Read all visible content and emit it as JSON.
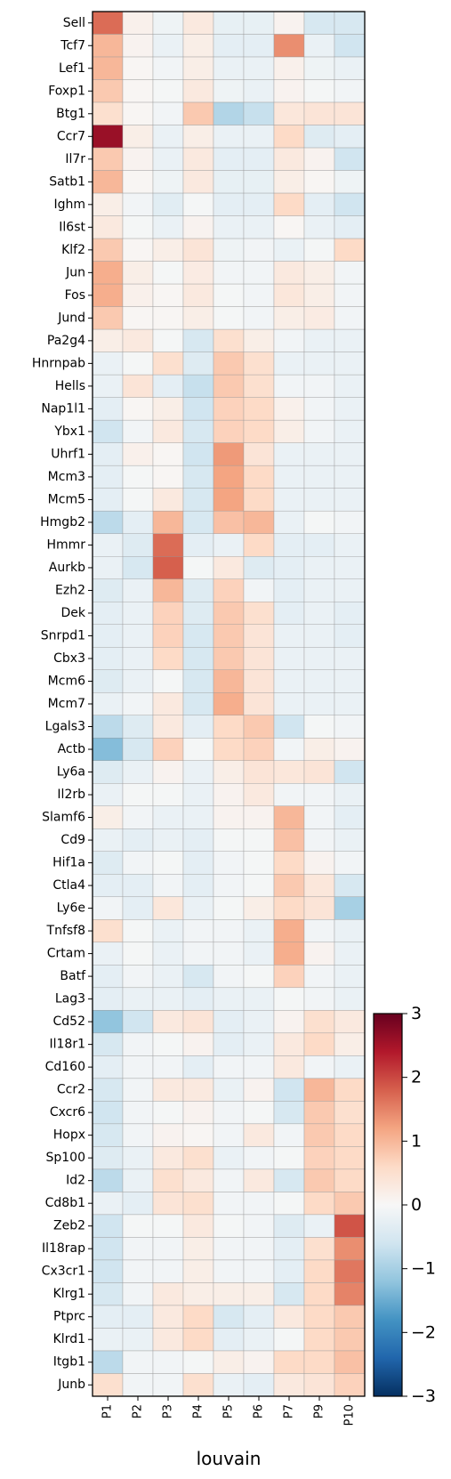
{
  "chart_data": {
    "type": "heatmap",
    "xlabel": "louvain",
    "ylabel": "",
    "title": "",
    "columns": [
      "P1",
      "P2",
      "P3",
      "P4",
      "P5",
      "P6",
      "P7",
      "P9",
      "P10"
    ],
    "rows": [
      "Sell",
      "Tcf7",
      "Lef1",
      "Foxp1",
      "Btg1",
      "Ccr7",
      "Il7r",
      "Satb1",
      "Ighm",
      "Il6st",
      "Klf2",
      "Jun",
      "Fos",
      "Jund",
      "Pa2g4",
      "Hnrnpab",
      "Hells",
      "Nap1l1",
      "Ybx1",
      "Uhrf1",
      "Mcm3",
      "Mcm5",
      "Hmgb2",
      "Hmmr",
      "Aurkb",
      "Ezh2",
      "Dek",
      "Snrpd1",
      "Cbx3",
      "Mcm6",
      "Mcm7",
      "Lgals3",
      "Actb",
      "Ly6a",
      "Il2rb",
      "Slamf6",
      "Cd9",
      "Hif1a",
      "Ctla4",
      "Ly6e",
      "Tnfsf8",
      "Crtam",
      "Batf",
      "Lag3",
      "Cd52",
      "Il18r1",
      "Cd160",
      "Ccr2",
      "Cxcr6",
      "Hopx",
      "Sp100",
      "Id2",
      "Cd8b1",
      "Zeb2",
      "Il18rap",
      "Cx3cr1",
      "Klrg1",
      "Ptprc",
      "Klrd1",
      "Itgb1",
      "Junb"
    ],
    "values": [
      [
        1.7,
        0.15,
        -0.15,
        0.3,
        -0.25,
        -0.25,
        0.1,
        -0.5,
        -0.5
      ],
      [
        1.0,
        0.1,
        -0.2,
        0.2,
        -0.3,
        -0.3,
        1.4,
        -0.2,
        -0.6
      ],
      [
        1.0,
        0.05,
        -0.1,
        0.2,
        -0.2,
        -0.2,
        0.15,
        -0.15,
        -0.2
      ],
      [
        0.8,
        0.05,
        -0.05,
        0.3,
        -0.15,
        -0.2,
        0.1,
        -0.05,
        -0.1
      ],
      [
        0.5,
        0.05,
        -0.1,
        0.8,
        -0.9,
        -0.7,
        0.35,
        0.4,
        0.4
      ],
      [
        2.6,
        0.2,
        -0.2,
        0.2,
        -0.2,
        -0.2,
        0.6,
        -0.4,
        -0.3
      ],
      [
        0.8,
        0.1,
        -0.2,
        0.3,
        -0.3,
        -0.3,
        0.3,
        0.1,
        -0.6
      ],
      [
        1.0,
        0.05,
        -0.15,
        0.3,
        -0.25,
        -0.25,
        0.2,
        0.05,
        -0.15
      ],
      [
        0.2,
        -0.1,
        -0.35,
        -0.05,
        -0.3,
        -0.3,
        0.6,
        -0.3,
        -0.6
      ],
      [
        0.3,
        -0.05,
        -0.2,
        0.1,
        -0.2,
        -0.2,
        0.05,
        -0.2,
        -0.3
      ],
      [
        0.8,
        0.05,
        0.2,
        0.4,
        -0.15,
        -0.1,
        -0.2,
        -0.05,
        0.6
      ],
      [
        1.1,
        0.2,
        -0.05,
        0.25,
        -0.1,
        -0.1,
        0.3,
        0.2,
        -0.1
      ],
      [
        1.1,
        0.15,
        0.05,
        0.3,
        -0.05,
        -0.1,
        0.35,
        0.2,
        -0.1
      ],
      [
        0.8,
        0.05,
        0.05,
        0.2,
        -0.05,
        -0.1,
        0.2,
        0.25,
        -0.1
      ],
      [
        0.2,
        0.3,
        -0.05,
        -0.5,
        0.5,
        0.2,
        -0.1,
        -0.2,
        -0.2
      ],
      [
        -0.2,
        -0.05,
        0.5,
        -0.4,
        0.8,
        0.5,
        -0.2,
        -0.2,
        -0.2
      ],
      [
        -0.2,
        0.4,
        -0.3,
        -0.7,
        0.8,
        0.5,
        -0.1,
        -0.1,
        -0.2
      ],
      [
        -0.3,
        0.05,
        0.2,
        -0.6,
        0.7,
        0.6,
        0.15,
        -0.1,
        -0.2
      ],
      [
        -0.6,
        -0.1,
        0.3,
        -0.5,
        0.7,
        0.6,
        0.2,
        -0.1,
        -0.2
      ],
      [
        -0.3,
        0.15,
        0.05,
        -0.6,
        1.3,
        0.4,
        -0.2,
        -0.2,
        -0.2
      ],
      [
        -0.3,
        -0.05,
        0.05,
        -0.5,
        1.2,
        0.6,
        -0.2,
        -0.2,
        -0.2
      ],
      [
        -0.3,
        -0.05,
        0.3,
        -0.5,
        1.2,
        0.6,
        -0.2,
        -0.2,
        -0.2
      ],
      [
        -0.8,
        -0.3,
        1.0,
        -0.5,
        0.9,
        1.0,
        -0.2,
        -0.05,
        -0.1
      ],
      [
        -0.2,
        -0.4,
        1.7,
        -0.3,
        -0.2,
        0.6,
        -0.3,
        -0.3,
        -0.2
      ],
      [
        -0.2,
        -0.5,
        1.8,
        -0.05,
        0.3,
        -0.4,
        -0.3,
        -0.2,
        -0.2
      ],
      [
        -0.4,
        -0.2,
        1.0,
        -0.4,
        0.7,
        -0.1,
        -0.3,
        -0.2,
        -0.2
      ],
      [
        -0.3,
        -0.2,
        0.7,
        -0.4,
        0.8,
        0.5,
        -0.3,
        -0.2,
        -0.3
      ],
      [
        -0.3,
        -0.2,
        0.7,
        -0.5,
        0.8,
        0.4,
        -0.2,
        -0.2,
        -0.3
      ],
      [
        -0.3,
        -0.2,
        0.6,
        -0.5,
        0.8,
        0.4,
        -0.2,
        -0.2,
        -0.2
      ],
      [
        -0.4,
        -0.2,
        -0.05,
        -0.5,
        1.0,
        0.4,
        -0.2,
        -0.2,
        -0.2
      ],
      [
        -0.2,
        -0.1,
        0.3,
        -0.5,
        1.1,
        0.4,
        -0.2,
        -0.2,
        -0.2
      ],
      [
        -0.8,
        -0.4,
        0.3,
        -0.3,
        0.6,
        0.8,
        -0.6,
        -0.05,
        -0.1
      ],
      [
        -1.3,
        -0.5,
        0.7,
        -0.05,
        0.6,
        0.7,
        -0.1,
        0.2,
        0.1
      ],
      [
        -0.4,
        -0.2,
        0.1,
        -0.2,
        0.2,
        0.4,
        0.35,
        0.4,
        -0.6
      ],
      [
        -0.2,
        -0.05,
        -0.05,
        -0.2,
        0.1,
        0.3,
        -0.1,
        -0.1,
        -0.2
      ],
      [
        0.2,
        -0.1,
        -0.2,
        -0.2,
        0.1,
        0.1,
        1.0,
        -0.1,
        -0.3
      ],
      [
        -0.2,
        -0.3,
        -0.2,
        -0.3,
        -0.05,
        -0.05,
        0.9,
        -0.1,
        -0.2
      ],
      [
        -0.4,
        -0.1,
        -0.05,
        -0.3,
        -0.1,
        -0.05,
        0.6,
        0.1,
        -0.1
      ],
      [
        -0.3,
        -0.3,
        -0.1,
        -0.3,
        -0.1,
        -0.05,
        0.8,
        0.35,
        -0.5
      ],
      [
        -0.1,
        -0.3,
        0.35,
        -0.2,
        -0.05,
        0.2,
        0.6,
        0.4,
        -1.0
      ],
      [
        0.5,
        -0.05,
        -0.2,
        -0.1,
        -0.1,
        -0.2,
        1.1,
        -0.1,
        -0.2
      ],
      [
        -0.2,
        -0.05,
        -0.2,
        -0.1,
        -0.1,
        -0.2,
        1.1,
        0.1,
        -0.2
      ],
      [
        -0.3,
        -0.1,
        -0.2,
        -0.5,
        -0.1,
        -0.05,
        0.7,
        -0.1,
        -0.2
      ],
      [
        -0.3,
        -0.2,
        -0.2,
        -0.3,
        -0.2,
        -0.2,
        -0.05,
        -0.1,
        -0.2
      ],
      [
        -1.2,
        -0.6,
        0.3,
        0.4,
        -0.3,
        -0.2,
        0.1,
        0.5,
        0.3
      ],
      [
        -0.5,
        -0.1,
        -0.05,
        0.1,
        -0.3,
        -0.2,
        0.3,
        0.6,
        0.2
      ],
      [
        -0.3,
        -0.1,
        -0.1,
        -0.3,
        -0.1,
        -0.1,
        0.3,
        -0.1,
        -0.2
      ],
      [
        -0.5,
        -0.1,
        0.3,
        0.3,
        -0.2,
        0.1,
        -0.6,
        1.0,
        0.6
      ],
      [
        -0.6,
        -0.1,
        -0.05,
        0.1,
        -0.1,
        -0.05,
        -0.5,
        0.8,
        0.5
      ],
      [
        -0.5,
        -0.1,
        0.1,
        0.05,
        -0.1,
        0.3,
        -0.1,
        0.8,
        0.6
      ],
      [
        -0.4,
        -0.2,
        0.3,
        0.5,
        -0.2,
        -0.1,
        -0.05,
        0.7,
        0.6
      ],
      [
        -0.8,
        -0.2,
        0.5,
        0.3,
        -0.1,
        0.3,
        -0.5,
        0.8,
        0.6
      ],
      [
        -0.2,
        -0.3,
        0.4,
        0.5,
        -0.1,
        -0.1,
        -0.05,
        0.6,
        0.8
      ],
      [
        -0.6,
        -0.05,
        -0.05,
        0.3,
        -0.05,
        -0.1,
        -0.4,
        -0.2,
        1.9
      ],
      [
        -0.6,
        -0.1,
        -0.1,
        0.2,
        -0.1,
        -0.1,
        -0.3,
        0.5,
        1.4
      ],
      [
        -0.6,
        -0.1,
        -0.1,
        0.2,
        -0.1,
        -0.1,
        -0.3,
        0.6,
        1.6
      ],
      [
        -0.5,
        -0.1,
        0.3,
        0.2,
        0.2,
        0.2,
        -0.5,
        0.6,
        1.5
      ],
      [
        -0.3,
        -0.3,
        0.3,
        0.6,
        -0.5,
        -0.3,
        0.3,
        0.6,
        0.8
      ],
      [
        -0.2,
        -0.2,
        0.3,
        0.6,
        -0.3,
        -0.2,
        -0.05,
        0.6,
        0.8
      ],
      [
        -0.8,
        -0.1,
        -0.1,
        -0.05,
        0.2,
        0.1,
        0.6,
        0.6,
        0.9
      ],
      [
        0.5,
        -0.1,
        -0.1,
        0.5,
        -0.2,
        -0.3,
        0.3,
        0.4,
        0.7
      ]
    ],
    "colorbar": {
      "min": -3,
      "max": 3,
      "ticks": [
        "−3",
        "−2",
        "−1",
        "0",
        "1",
        "2",
        "3"
      ],
      "colormap": "RdBu_r"
    }
  }
}
